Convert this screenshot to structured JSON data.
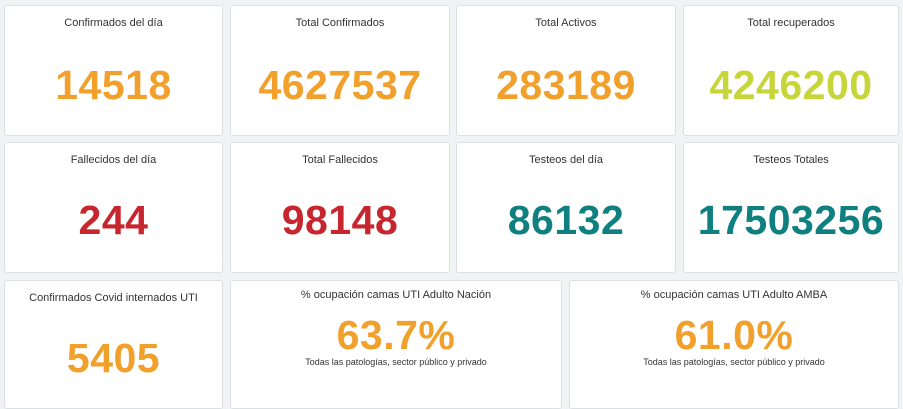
{
  "cards": [
    {
      "title": "Confirmados del día",
      "value": "14518",
      "color": "orange"
    },
    {
      "title": "Total Confirmados",
      "value": "4627537",
      "color": "orange"
    },
    {
      "title": "Total Activos",
      "value": "283189",
      "color": "orange"
    },
    {
      "title": "Total recuperados",
      "value": "4246200",
      "color": "lime"
    },
    {
      "title": "Fallecidos del día",
      "value": "244",
      "color": "red"
    },
    {
      "title": "Total Fallecidos",
      "value": "98148",
      "color": "red"
    },
    {
      "title": "Testeos del día",
      "value": "86132",
      "color": "teal"
    },
    {
      "title": "Testeos Totales",
      "value": "17503256",
      "color": "teal"
    },
    {
      "title": "Confirmados Covid internados UTI",
      "value": "5405",
      "color": "orange"
    },
    {
      "title": "% ocupación camas UTI Adulto Nación",
      "value": "63.7%",
      "subtitle": "Todas las patologías, sector público y privado",
      "color": "orange"
    },
    {
      "title": "% ocupación camas UTI Adulto AMBA",
      "value": "61.0%",
      "subtitle": "Todas las patologías, sector público y privado",
      "color": "orange"
    }
  ],
  "colors": {
    "orange": "#f2a02c",
    "lime": "#c6d63a",
    "red": "#c6262e",
    "teal": "#0f7f80"
  }
}
